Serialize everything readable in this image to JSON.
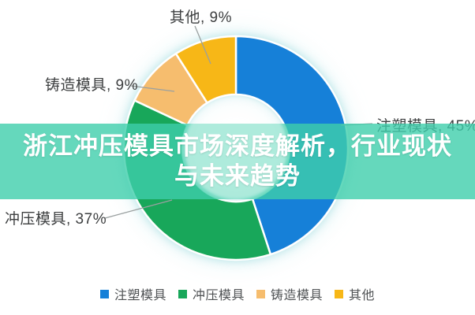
{
  "banner": {
    "title_line1": "浙江冲压模具市场深度解析，行业现状",
    "title_line2": "与未来趋势",
    "background_rgba": "rgba(62,206,171,0.80)",
    "text_color": "#ffffff"
  },
  "chart_data": {
    "type": "pie",
    "style": "donut",
    "title": "",
    "categories": [
      "注塑模具",
      "冲压模具",
      "铸造模具",
      "其他"
    ],
    "values": [
      45,
      37,
      9,
      9
    ],
    "unit": "%",
    "colors": [
      "#1680d8",
      "#18a75a",
      "#f6bd6e",
      "#f7b717"
    ],
    "label_separator": ", ",
    "start_angle_deg": 0,
    "direction": "clockwise",
    "legend_position": "bottom",
    "legend_text_color": "#4f5254"
  }
}
